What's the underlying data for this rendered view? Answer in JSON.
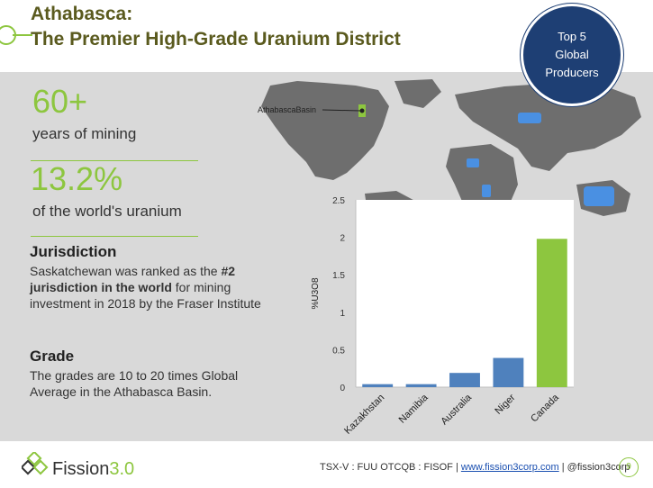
{
  "header": {
    "title_line1": "Athabasca:",
    "title_line2": "The Premier High-Grade Uranium District"
  },
  "badge": {
    "line1": "Top 5",
    "line2": "Global",
    "line3": "Producers"
  },
  "map": {
    "label": "AthabascaBasin"
  },
  "stats": [
    {
      "value": "60+",
      "label": "years of mining"
    },
    {
      "value": "13.2%",
      "label": "of the world's uranium"
    }
  ],
  "sections": {
    "jurisdiction": {
      "heading": "Jurisdiction",
      "text_pre": "Saskatchewan was ranked as the ",
      "text_bold": "#2 jurisdiction in the world",
      "text_post": " for mining investment in 2018 by the Fraser Institute"
    },
    "grade": {
      "heading": "Grade",
      "text": "The grades are 10 to 20 times Global Average in the Athabasca Basin."
    }
  },
  "footer": {
    "logo_name": "Fission",
    "logo_version": "3.0",
    "tickers": "TSX-V : FUU OTCQB : FISOF |",
    "website": "www.fission3corp.com",
    "handle": "| @fission3corp",
    "page": "9"
  },
  "colors": {
    "accent_green": "#8dc63f",
    "badge_blue": "#1e3f74",
    "bar_blue": "#4f81bd",
    "map_land": "#6e6e6e",
    "map_highlight": "#4a90e2"
  },
  "chart_data": {
    "type": "bar",
    "categories": [
      "Kazakhstan",
      "Namibia",
      "Australia",
      "Niger",
      "Canada"
    ],
    "values": [
      0.04,
      0.04,
      0.19,
      0.39,
      1.98
    ],
    "bar_colors": [
      "#4f81bd",
      "#4f81bd",
      "#4f81bd",
      "#4f81bd",
      "#8dc63f"
    ],
    "ylabel": "%U3O8",
    "ylim": [
      0,
      2.5
    ],
    "yticks": [
      "0",
      "0.5",
      "1",
      "1.5",
      "2",
      "2.5"
    ],
    "grid": false
  }
}
